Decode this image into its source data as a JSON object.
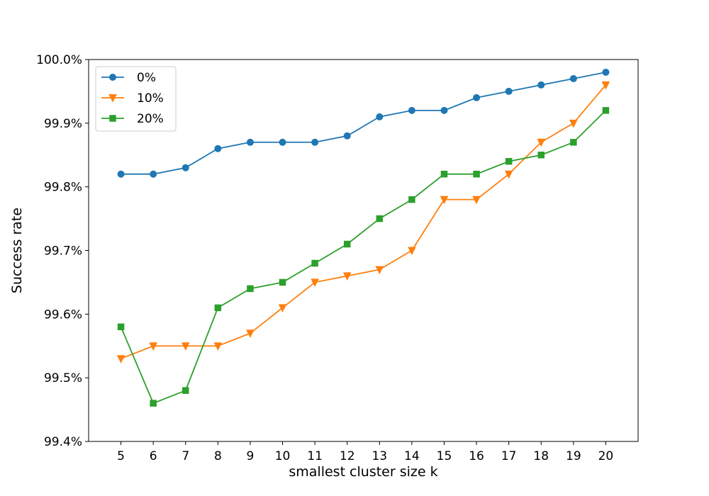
{
  "chart_data": {
    "type": "line",
    "xlabel": "smallest cluster size k",
    "ylabel": "Success rate",
    "x": [
      5,
      6,
      7,
      8,
      9,
      10,
      11,
      12,
      13,
      14,
      15,
      16,
      17,
      18,
      19,
      20
    ],
    "x_ticks": [
      "5",
      "6",
      "7",
      "8",
      "9",
      "10",
      "11",
      "12",
      "13",
      "14",
      "15",
      "16",
      "17",
      "18",
      "19",
      "20"
    ],
    "xlim": [
      4,
      21
    ],
    "ylim": [
      99.4,
      100.0
    ],
    "y_ticks": [
      99.4,
      99.5,
      99.6,
      99.7,
      99.8,
      99.9,
      100.0
    ],
    "y_tick_labels": [
      "99.4%",
      "99.5%",
      "99.6%",
      "99.7%",
      "99.8%",
      "99.9%",
      "100.0%"
    ],
    "grid": false,
    "legend_position": "top-left",
    "series": [
      {
        "name": "0%",
        "color": "#1f77b4",
        "marker": "circle",
        "values": [
          99.82,
          99.82,
          99.83,
          99.86,
          99.87,
          99.87,
          99.87,
          99.88,
          99.91,
          99.92,
          99.92,
          99.94,
          99.95,
          99.96,
          99.97,
          99.98
        ]
      },
      {
        "name": "10%",
        "color": "#ff7f0e",
        "marker": "triangle-down",
        "values": [
          99.53,
          99.55,
          99.55,
          99.55,
          99.57,
          99.61,
          99.65,
          99.66,
          99.67,
          99.7,
          99.78,
          99.78,
          99.82,
          99.87,
          99.9,
          99.96
        ]
      },
      {
        "name": "20%",
        "color": "#2ca02c",
        "marker": "square",
        "values": [
          99.58,
          99.46,
          99.48,
          99.61,
          99.64,
          99.65,
          99.68,
          99.71,
          99.75,
          99.78,
          99.82,
          99.82,
          99.84,
          99.85,
          99.87,
          99.92
        ]
      }
    ]
  }
}
